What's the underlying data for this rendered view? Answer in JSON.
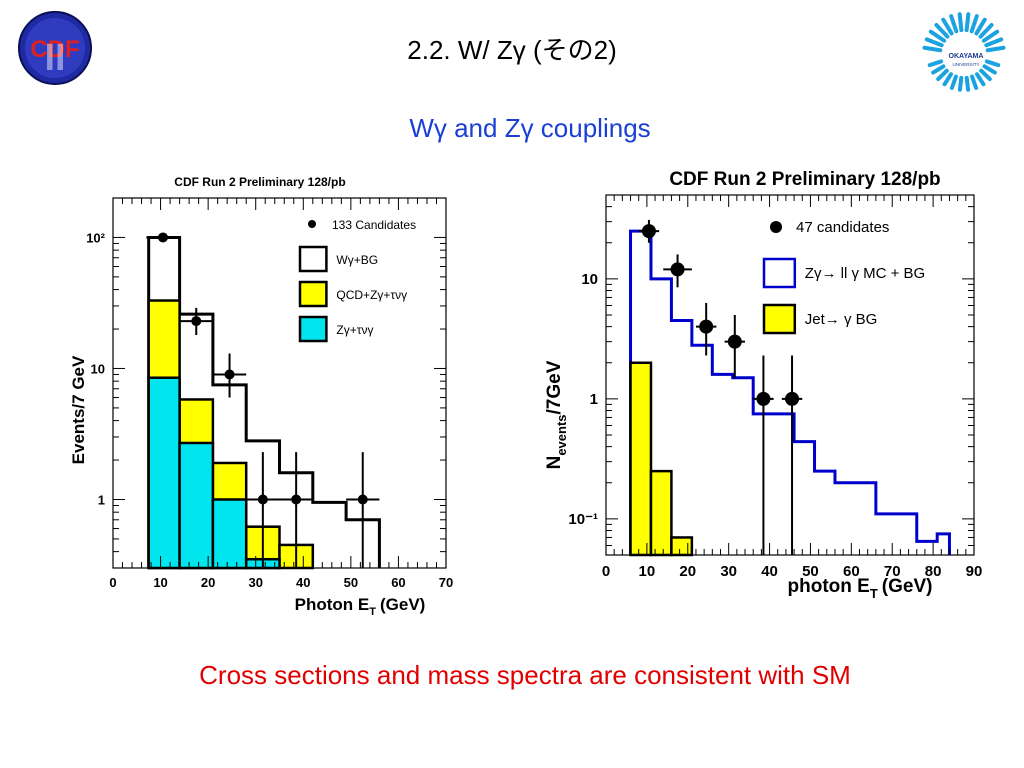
{
  "slide": {
    "title": "2.2.  W/ Zγ (その2)",
    "subtitle": "Wγ and Zγ couplings",
    "footer": "Cross sections and mass spectra are consistent with SM",
    "logo_left_text": "CDF",
    "logo_left_numeral": "II",
    "logo_right_text": "OKAYAMA",
    "logo_right_subtext": "UNIVERSITY"
  },
  "chart_data": [
    {
      "type": "histogram",
      "title": "CDF Run 2 Preliminary 128/pb",
      "xlabel": "Photon E",
      "xlabel_sub": "T",
      "xlabel_unit": "(GeV)",
      "ylabel": "Events/7 GeV",
      "xlim": [
        0,
        70
      ],
      "ylim": [
        0.3,
        200
      ],
      "yscale": "log",
      "xticks": [
        0,
        10,
        20,
        30,
        40,
        50,
        60,
        70
      ],
      "yticks": [
        {
          "v": 1,
          "label": "1"
        },
        {
          "v": 10,
          "label": "10"
        },
        {
          "v": 100,
          "label": "10²"
        }
      ],
      "bin_edges": [
        7.5,
        14,
        21,
        28,
        35,
        42,
        49,
        56
      ],
      "series": [
        {
          "name": "Wγ+BG",
          "style": "outline",
          "color": "#000000",
          "values": [
            100,
            26,
            7.5,
            2.8,
            1.6,
            0.95,
            0.7
          ]
        },
        {
          "name": "QCD+Zγ+τνγ",
          "style": "fill",
          "color": "#ffff00",
          "values": [
            33,
            5.8,
            1.9,
            0.62,
            0.45,
            0.3,
            0.3
          ]
        },
        {
          "name": "Zγ+τνγ",
          "style": "fill",
          "color": "#00e5ee",
          "values": [
            8.5,
            2.7,
            1.0,
            0.35,
            0.3,
            0.3,
            0.3
          ]
        }
      ],
      "points_label": "133 Candidates",
      "points": [
        {
          "x": 10.5,
          "y": 100,
          "ylo": 100,
          "yhi": 100,
          "xerr": 3.5
        },
        {
          "x": 17.5,
          "y": 23,
          "ylo": 18,
          "yhi": 29,
          "xerr": 3.5
        },
        {
          "x": 24.5,
          "y": 9,
          "ylo": 6,
          "yhi": 13,
          "xerr": 3.5
        },
        {
          "x": 31.5,
          "y": 1,
          "ylo": 0.3,
          "yhi": 2.3,
          "xerr": 3.5
        },
        {
          "x": 38.5,
          "y": 1,
          "ylo": 0.3,
          "yhi": 2.3,
          "xerr": 3.5
        },
        {
          "x": 52.5,
          "y": 1,
          "ylo": 0.3,
          "yhi": 2.3,
          "xerr": 3.5
        }
      ]
    },
    {
      "type": "histogram",
      "title": "CDF Run 2 Preliminary 128/pb",
      "xlabel": "photon E",
      "xlabel_sub": "T",
      "xlabel_unit": "(GeV)",
      "ylabel": "N",
      "ylabel_sub": "events",
      "ylabel_unit": "/7GeV",
      "xlim": [
        0,
        90
      ],
      "ylim": [
        0.05,
        50
      ],
      "yscale": "log",
      "xticks": [
        0,
        10,
        20,
        30,
        40,
        50,
        60,
        70,
        80,
        90
      ],
      "yticks": [
        {
          "v": 0.1,
          "label": "10⁻¹"
        },
        {
          "v": 1,
          "label": "1"
        },
        {
          "v": 10,
          "label": "10"
        }
      ],
      "bin_edges": [
        6,
        11,
        16,
        21,
        26,
        31,
        36,
        41,
        46,
        51,
        56,
        61,
        66,
        71,
        76,
        81,
        84
      ],
      "series": [
        {
          "name": "Zγ→ ll γ MC + BG",
          "style": "outline",
          "color": "#0000cc",
          "values": [
            25,
            10,
            4.5,
            2.8,
            1.6,
            1.5,
            0.75,
            0.75,
            0.44,
            0.25,
            0.2,
            0.2,
            0.11,
            0.11,
            0.065,
            0.075
          ]
        },
        {
          "name": "Jet→ γ BG",
          "style": "fill",
          "color": "#ffff00",
          "values": [
            2.0,
            0.25,
            0.07,
            0.05,
            0.05,
            0.05,
            0.05,
            0.05,
            0.05,
            0.05,
            0.05,
            0.05,
            0.05,
            0.05,
            0.05,
            0.05
          ]
        }
      ],
      "points_label": "47 candidates",
      "points": [
        {
          "x": 10.5,
          "y": 25,
          "ylo": 20,
          "yhi": 31,
          "xerr": 2.5
        },
        {
          "x": 17.5,
          "y": 12,
          "ylo": 8.5,
          "yhi": 16,
          "xerr": 3.5
        },
        {
          "x": 24.5,
          "y": 4,
          "ylo": 2.3,
          "yhi": 6.3,
          "xerr": 2.5
        },
        {
          "x": 31.5,
          "y": 3,
          "ylo": 1.5,
          "yhi": 5,
          "xerr": 2.5
        },
        {
          "x": 38.5,
          "y": 1,
          "ylo": 0.05,
          "yhi": 2.3,
          "xerr": 2.5
        },
        {
          "x": 45.5,
          "y": 1,
          "ylo": 0.05,
          "yhi": 2.3,
          "xerr": 2.5
        }
      ]
    }
  ]
}
